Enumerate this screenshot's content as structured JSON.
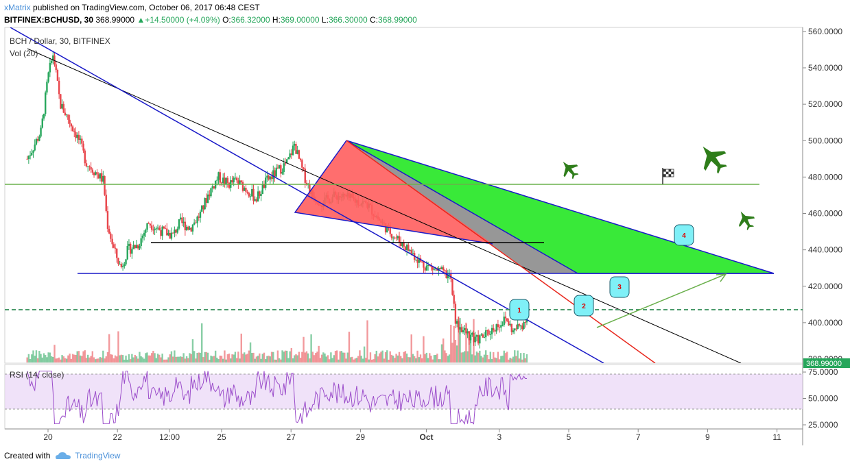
{
  "header": {
    "author": "xMatrix",
    "published": "published on TradingView.com, October 06, 2017 06:48 CEST",
    "symbol": "BITFINEX:BCHUSD, 30",
    "last": "368.99000",
    "change": "+14.50000 (+4.09%)",
    "open_label": "O:",
    "open": "366.32000",
    "high_label": "H:",
    "high": "369.00000",
    "low_label": "L:",
    "low": "366.30000",
    "close_label": "C:",
    "close": "368.99000"
  },
  "legend": {
    "pair": "BCH / Dollar, 30, BITFINEX",
    "vol": "Vol (20)",
    "rsi": "RSI (14, close)"
  },
  "footer": {
    "created": "Created with",
    "brand": "TradingView"
  },
  "colors": {
    "up": "#26a65b",
    "down": "#e8454b",
    "rsi": "#9b4dca",
    "blue_line": "#1a1ac8",
    "green_fill": "#2ee82e",
    "red_fill": "#ff5e5e",
    "grey_fill": "#8c8c8c",
    "marker": "#7ff0f7"
  },
  "markers": [
    "1",
    "2",
    "3",
    "4"
  ],
  "icons": [
    "fighter-jet-icon",
    "checkered-flag-icon"
  ],
  "chart_data": [
    {
      "type": "candlestick",
      "title": "BCH / Dollar, 30, BITFINEX",
      "x_ticks": [
        "20",
        "22",
        "12:00",
        "25",
        "27",
        "29",
        "Oct",
        "3",
        "5",
        "7",
        "9",
        "11"
      ],
      "y_ticks": [
        "560.0000",
        "540.0000",
        "520.0000",
        "500.0000",
        "480.0000",
        "460.0000",
        "440.0000",
        "420.0000",
        "400.0000",
        "380.0000"
      ],
      "ylim": [
        376,
        562
      ],
      "last_price": 368.99,
      "series_path": [
        [
          -0.6,
          490
        ],
        [
          -0.2,
          505
        ],
        [
          0.0,
          535
        ],
        [
          0.15,
          548
        ],
        [
          0.35,
          520
        ],
        [
          0.5,
          515
        ],
        [
          0.9,
          500
        ],
        [
          1.1,
          488
        ],
        [
          1.6,
          478
        ],
        [
          1.7,
          455
        ],
        [
          1.9,
          440
        ],
        [
          2.1,
          430
        ],
        [
          2.3,
          440
        ],
        [
          2.6,
          443
        ],
        [
          2.9,
          455
        ],
        [
          3.3,
          450
        ],
        [
          3.6,
          448
        ],
        [
          3.8,
          455
        ],
        [
          4.1,
          452
        ],
        [
          4.4,
          460
        ],
        [
          4.6,
          470
        ],
        [
          4.9,
          480
        ],
        [
          5.2,
          476
        ],
        [
          5.4,
          478
        ],
        [
          5.8,
          472
        ],
        [
          6.0,
          468
        ],
        [
          6.3,
          478
        ],
        [
          6.6,
          483
        ],
        [
          6.9,
          488
        ],
        [
          7.1,
          498
        ],
        [
          7.3,
          485
        ],
        [
          7.6,
          470
        ],
        [
          7.9,
          466
        ],
        [
          8.3,
          470
        ],
        [
          8.7,
          468
        ],
        [
          9.2,
          465
        ],
        [
          9.6,
          455
        ],
        [
          10.0,
          447
        ],
        [
          10.4,
          440
        ],
        [
          10.8,
          432
        ],
        [
          11.3,
          428
        ],
        [
          11.6,
          425
        ],
        [
          11.75,
          400
        ],
        [
          12.0,
          395
        ],
        [
          12.3,
          390
        ],
        [
          12.6,
          393
        ],
        [
          12.9,
          398
        ],
        [
          13.2,
          402
        ],
        [
          13.4,
          395
        ],
        [
          13.7,
          400
        ],
        [
          13.8,
          405
        ]
      ],
      "horizontal_levels": [
        {
          "name": "green resistance",
          "value": 476
        },
        {
          "name": "black level",
          "value": 444
        },
        {
          "name": "blue support",
          "value": 427
        },
        {
          "name": "dashed green",
          "value": 407
        }
      ]
    },
    {
      "type": "line",
      "title": "RSI (14, close)",
      "y_ticks": [
        "75.0000",
        "50.0000",
        "25.0000"
      ],
      "ylim": [
        22,
        78
      ],
      "band": [
        40,
        72
      ]
    }
  ]
}
